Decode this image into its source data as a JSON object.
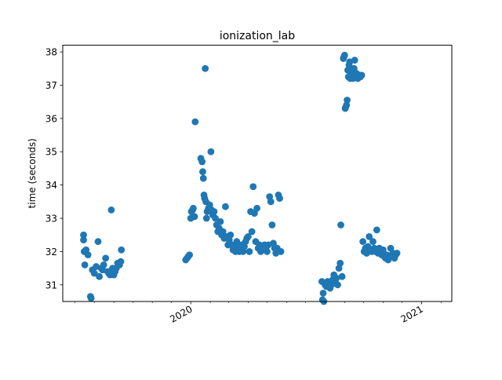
{
  "chart_data": {
    "type": "scatter",
    "title": "ionization_lab",
    "xlabel": "",
    "ylabel": "time (seconds)",
    "xlim": [
      "2019-06-12",
      "2021-02-18"
    ],
    "ylim": [
      30.5,
      38.2
    ],
    "x_major_ticks": [
      {
        "date": "2020-01-01",
        "label": "2020"
      },
      {
        "date": "2021-01-01",
        "label": "2021"
      }
    ],
    "y_ticks": [
      31,
      32,
      33,
      34,
      35,
      36,
      37,
      38
    ],
    "grid": false,
    "legend": "none",
    "marker_color": "#1f77b4",
    "clusters": [
      {
        "center": "2019-07-15",
        "spread_days": 22,
        "points": [
          [
            0,
            32.5
          ],
          [
            0,
            32.35
          ],
          [
            1,
            32.0
          ],
          [
            2,
            31.6
          ],
          [
            4,
            32.05
          ],
          [
            7,
            31.9
          ],
          [
            11,
            30.65
          ],
          [
            12,
            30.6
          ],
          [
            14,
            31.45
          ],
          [
            17,
            31.35
          ],
          [
            20,
            31.55
          ],
          [
            23,
            32.3
          ],
          [
            25,
            31.25
          ],
          [
            28,
            31.5
          ],
          [
            30,
            31.45
          ],
          [
            32,
            31.6
          ],
          [
            35,
            31.8
          ],
          [
            38,
            31.4
          ],
          [
            40,
            31.35
          ],
          [
            42,
            31.3
          ],
          [
            44,
            33.25
          ],
          [
            46,
            31.5
          ],
          [
            48,
            31.3
          ],
          [
            50,
            31.4
          ],
          [
            52,
            31.5
          ],
          [
            54,
            31.65
          ],
          [
            57,
            31.6
          ],
          [
            59,
            31.7
          ],
          [
            60,
            32.05
          ]
        ]
      },
      {
        "center": "2019-12-30",
        "spread_days": 60,
        "points": [
          [
            -6,
            31.75
          ],
          [
            -4,
            31.8
          ],
          [
            -2,
            31.85
          ],
          [
            0,
            31.9
          ],
          [
            2,
            33.0
          ],
          [
            3,
            33.2
          ],
          [
            5,
            33.25
          ],
          [
            6,
            33.3
          ],
          [
            8,
            33.05
          ],
          [
            9,
            35.9
          ],
          [
            18,
            34.8
          ],
          [
            20,
            34.7
          ],
          [
            21,
            34.4
          ],
          [
            22,
            34.2
          ],
          [
            23,
            33.7
          ],
          [
            24,
            33.6
          ],
          [
            25,
            37.5
          ],
          [
            26,
            33.5
          ],
          [
            27,
            33.0
          ],
          [
            28,
            33.2
          ],
          [
            30,
            33.3
          ],
          [
            32,
            33.4
          ],
          [
            34,
            35.0
          ],
          [
            35,
            33.25
          ],
          [
            37,
            33.1
          ],
          [
            39,
            33.2
          ],
          [
            41,
            33.0
          ],
          [
            43,
            32.8
          ],
          [
            45,
            32.6
          ],
          [
            47,
            32.7
          ],
          [
            49,
            32.9
          ],
          [
            51,
            32.5
          ],
          [
            53,
            32.6
          ],
          [
            55,
            32.4
          ],
          [
            57,
            33.35
          ],
          [
            59,
            32.45
          ],
          [
            61,
            32.2
          ],
          [
            63,
            32.35
          ],
          [
            65,
            32.5
          ],
          [
            67,
            32.2
          ],
          [
            69,
            32.05
          ],
          [
            71,
            32.1
          ],
          [
            73,
            32.0
          ],
          [
            75,
            32.3
          ],
          [
            77,
            32.2
          ],
          [
            79,
            32.0
          ],
          [
            81,
            32.1
          ],
          [
            83,
            32.2
          ],
          [
            85,
            32.0
          ],
          [
            87,
            32.15
          ],
          [
            89,
            32.3
          ],
          [
            91,
            32.4
          ],
          [
            93,
            32.45
          ],
          [
            95,
            32.0
          ],
          [
            97,
            33.2
          ],
          [
            99,
            32.6
          ],
          [
            101,
            33.95
          ],
          [
            103,
            33.15
          ],
          [
            105,
            32.3
          ],
          [
            107,
            33.3
          ],
          [
            109,
            32.1
          ],
          [
            111,
            32.2
          ],
          [
            113,
            32.0
          ],
          [
            115,
            32.15
          ],
          [
            117,
            32.1
          ],
          [
            119,
            32.2
          ],
          [
            121,
            32.1
          ],
          [
            123,
            32.0
          ],
          [
            125,
            32.2
          ],
          [
            127,
            33.65
          ],
          [
            129,
            33.5
          ],
          [
            131,
            32.8
          ],
          [
            133,
            32.25
          ],
          [
            135,
            32.1
          ],
          [
            137,
            31.95
          ],
          [
            139,
            32.1
          ],
          [
            141,
            33.7
          ],
          [
            143,
            33.6
          ],
          [
            145,
            32.0
          ]
        ]
      },
      {
        "center": "2020-09-20",
        "spread_days": 60,
        "points": [
          [
            -55,
            31.1
          ],
          [
            -54,
            30.55
          ],
          [
            -53,
            30.75
          ],
          [
            -52,
            30.5
          ],
          [
            -50,
            31.0
          ],
          [
            -48,
            30.95
          ],
          [
            -46,
            31.1
          ],
          [
            -44,
            31.05
          ],
          [
            -42,
            30.9
          ],
          [
            -40,
            31.0
          ],
          [
            -38,
            31.15
          ],
          [
            -36,
            31.3
          ],
          [
            -34,
            31.1
          ],
          [
            -32,
            31.2
          ],
          [
            -30,
            31.0
          ],
          [
            -28,
            31.5
          ],
          [
            -26,
            31.65
          ],
          [
            -25,
            32.8
          ],
          [
            -23,
            31.25
          ],
          [
            -21,
            37.8
          ],
          [
            -20,
            37.85
          ],
          [
            -19,
            37.9
          ],
          [
            -18,
            36.3
          ],
          [
            -17,
            36.35
          ],
          [
            -16,
            36.4
          ],
          [
            -15,
            36.55
          ],
          [
            -14,
            37.45
          ],
          [
            -13,
            37.25
          ],
          [
            -12,
            37.6
          ],
          [
            -11,
            37.7
          ],
          [
            -10,
            37.2
          ],
          [
            -9,
            37.3
          ],
          [
            -8,
            37.4
          ],
          [
            -6,
            37.2
          ],
          [
            -4,
            37.5
          ],
          [
            -3,
            37.75
          ],
          [
            -2,
            37.3
          ],
          [
            0,
            37.35
          ],
          [
            2,
            37.2
          ],
          [
            4,
            37.3
          ],
          [
            6,
            37.25
          ],
          [
            8,
            37.3
          ],
          [
            10,
            32.3
          ],
          [
            12,
            32.0
          ],
          [
            14,
            32.1
          ],
          [
            16,
            31.95
          ],
          [
            18,
            32.15
          ],
          [
            20,
            32.45
          ],
          [
            22,
            32.05
          ],
          [
            24,
            32.0
          ],
          [
            26,
            32.3
          ],
          [
            28,
            32.1
          ],
          [
            30,
            32.0
          ],
          [
            32,
            32.65
          ],
          [
            34,
            31.95
          ],
          [
            36,
            32.1
          ],
          [
            38,
            32.0
          ],
          [
            40,
            31.9
          ],
          [
            42,
            32.05
          ],
          [
            44,
            31.85
          ],
          [
            46,
            31.8
          ],
          [
            48,
            31.9
          ],
          [
            50,
            31.75
          ],
          [
            52,
            31.85
          ],
          [
            54,
            32.1
          ],
          [
            56,
            31.9
          ],
          [
            58,
            31.95
          ],
          [
            60,
            31.8
          ],
          [
            62,
            31.9
          ],
          [
            64,
            31.95
          ]
        ]
      }
    ]
  }
}
